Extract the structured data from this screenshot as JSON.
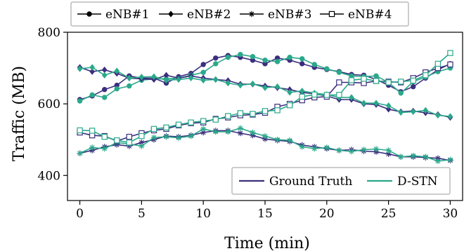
{
  "chart_data": {
    "type": "line",
    "xlabel": "Time (min)",
    "ylabel": "Traffic (MB)",
    "xlim": [
      -1,
      31
    ],
    "ylim": [
      330,
      800
    ],
    "xticks": [
      0,
      5,
      10,
      15,
      20,
      25,
      30
    ],
    "yticks": [
      400,
      600,
      800
    ],
    "grid": false,
    "marker_legend": [
      {
        "label": "eNB#1",
        "marker": "circle"
      },
      {
        "label": "eNB#2",
        "marker": "diamond"
      },
      {
        "label": "eNB#3",
        "marker": "asterisk"
      },
      {
        "label": "eNB#4",
        "marker": "open-square"
      }
    ],
    "color_legend": [
      {
        "label": "Ground Truth",
        "color": "#3b2e7e"
      },
      {
        "label": "D-STN",
        "color": "#2aa88a"
      }
    ],
    "marker_legend_position": "top-left, above plot",
    "color_legend_position": "bottom-right",
    "x": [
      0,
      1,
      2,
      3,
      4,
      5,
      6,
      7,
      8,
      9,
      10,
      11,
      12,
      13,
      14,
      15,
      16,
      17,
      18,
      19,
      20,
      21,
      22,
      23,
      24,
      25,
      26,
      27,
      28,
      29,
      30
    ],
    "series": [
      {
        "name": "eNB#1",
        "source": "Ground Truth",
        "marker": "circle",
        "values": [
          612,
          622,
          640,
          652,
          678,
          672,
          672,
          658,
          676,
          685,
          710,
          728,
          735,
          730,
          722,
          712,
          728,
          722,
          712,
          702,
          696,
          690,
          682,
          680,
          668,
          652,
          634,
          648,
          672,
          695,
          712
        ]
      },
      {
        "name": "eNB#1",
        "source": "D-STN",
        "marker": "circle",
        "values": [
          608,
          625,
          618,
          642,
          650,
          666,
          670,
          670,
          672,
          680,
          688,
          712,
          730,
          738,
          732,
          722,
          718,
          730,
          726,
          710,
          698,
          688,
          678,
          676,
          678,
          660,
          630,
          662,
          675,
          690,
          700
        ]
      },
      {
        "name": "eNB#2",
        "source": "Ground Truth",
        "marker": "diamond",
        "values": [
          702,
          690,
          695,
          685,
          672,
          670,
          668,
          680,
          672,
          678,
          672,
          668,
          665,
          655,
          655,
          650,
          645,
          640,
          632,
          628,
          622,
          612,
          612,
          600,
          598,
          585,
          578,
          580,
          575,
          570,
          562
        ]
      },
      {
        "name": "eNB#2",
        "source": "D-STN",
        "marker": "diamond",
        "values": [
          698,
          702,
          680,
          692,
          672,
          675,
          676,
          666,
          668,
          672,
          666,
          668,
          658,
          652,
          656,
          645,
          648,
          632,
          636,
          630,
          626,
          618,
          618,
          602,
          602,
          595,
          576,
          578,
          582,
          568,
          565
        ]
      },
      {
        "name": "eNB#3",
        "source": "Ground Truth",
        "marker": "asterisk",
        "values": [
          462,
          470,
          480,
          486,
          482,
          492,
          500,
          510,
          508,
          512,
          520,
          525,
          525,
          518,
          512,
          502,
          498,
          495,
          485,
          480,
          475,
          470,
          472,
          468,
          466,
          460,
          452,
          452,
          450,
          448,
          442
        ]
      },
      {
        "name": "eNB#3",
        "source": "D-STN",
        "marker": "asterisk",
        "values": [
          462,
          478,
          475,
          492,
          488,
          482,
          506,
          508,
          505,
          510,
          530,
          522,
          522,
          532,
          520,
          510,
          500,
          498,
          480,
          475,
          478,
          470,
          467,
          472,
          474,
          470,
          452,
          455,
          452,
          440,
          444
        ]
      },
      {
        "name": "eNB#4",
        "source": "Ground Truth",
        "marker": "open-square",
        "values": [
          520,
          512,
          510,
          496,
          508,
          518,
          526,
          530,
          540,
          546,
          548,
          558,
          562,
          568,
          570,
          575,
          592,
          600,
          610,
          618,
          620,
          660,
          660,
          658,
          664,
          662,
          660,
          672,
          688,
          700,
          710
        ]
      },
      {
        "name": "eNB#4",
        "source": "D-STN",
        "marker": "open-square",
        "values": [
          526,
          525,
          508,
          498,
          492,
          510,
          530,
          534,
          542,
          548,
          552,
          556,
          566,
          574,
          572,
          580,
          582,
          596,
          620,
          626,
          625,
          625,
          666,
          670,
          664,
          660,
          662,
          665,
          680,
          712,
          742
        ]
      }
    ]
  }
}
